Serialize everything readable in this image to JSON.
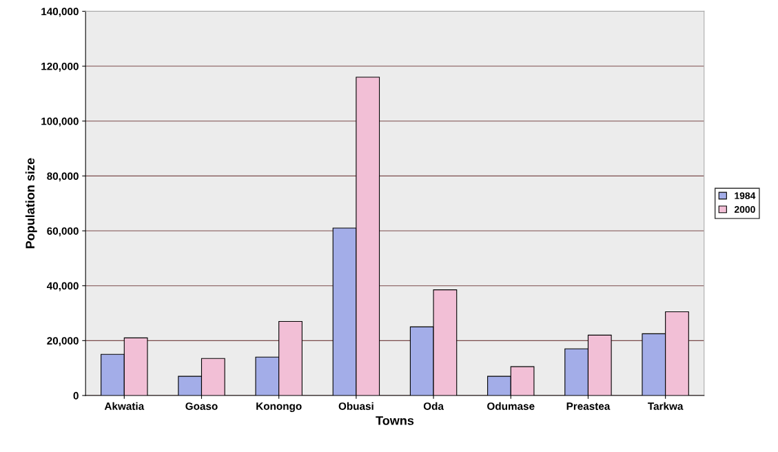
{
  "chart_data": {
    "type": "bar",
    "xlabel": "Towns",
    "ylabel": "Population size",
    "categories": [
      "Akwatia",
      "Goaso",
      "Konongo",
      "Obuasi",
      "Oda",
      "Odumase",
      "Preastea",
      "Tarkwa"
    ],
    "series": [
      {
        "name": "1984",
        "color": "#a3ade8",
        "values": [
          15000,
          7000,
          14000,
          61000,
          25000,
          7000,
          17000,
          22500
        ]
      },
      {
        "name": "2000",
        "color": "#f2bfd6",
        "values": [
          21000,
          13500,
          27000,
          116000,
          38500,
          10500,
          22000,
          30500
        ]
      }
    ],
    "ylim": [
      0,
      140000
    ],
    "yticks": [
      {
        "value": 0,
        "label": "0"
      },
      {
        "value": 20000,
        "label": "20,000"
      },
      {
        "value": 40000,
        "label": "40,000"
      },
      {
        "value": 60000,
        "label": "60,000"
      },
      {
        "value": 80000,
        "label": "80,000"
      },
      {
        "value": 100000,
        "label": "100,000"
      },
      {
        "value": 120000,
        "label": "120,000"
      },
      {
        "value": 140000,
        "label": "140,000"
      }
    ],
    "grid": "y",
    "legend": "right"
  }
}
